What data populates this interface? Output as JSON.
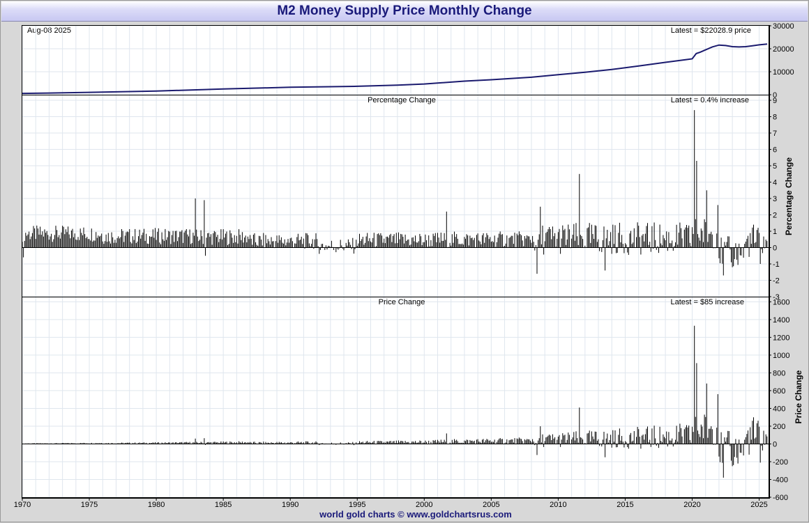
{
  "title": "M2 Money Supply Price Monthly Change",
  "footer": "world gold charts © www.goldchartsrus.com",
  "date_label": "Aug-08  2025",
  "colors": {
    "price_line": "#1a1a6e",
    "bars": "#000000",
    "grid": "#dfe6ee",
    "title_text": "#1a1a7a"
  },
  "chart_data": [
    {
      "type": "line",
      "panel": "price",
      "annotation": "Latest = $22028.9 price",
      "y_ticks": [
        "30000",
        "20000",
        "10000",
        "0"
      ],
      "ylim": [
        0,
        30000
      ],
      "x_ticks": [
        "1970",
        "1975",
        "1980",
        "1985",
        "1990",
        "1995",
        "2000",
        "2005",
        "2010",
        "2015",
        "2020",
        "2025"
      ],
      "xlim": [
        1970,
        2025.7
      ],
      "x": [
        1970.0,
        1972.0,
        1975.0,
        1978.0,
        1980.0,
        1983.0,
        1985.0,
        1988.0,
        1990.0,
        1993.0,
        1995.0,
        1998.0,
        2000.0,
        2003.0,
        2005.0,
        2008.0,
        2010.0,
        2012.0,
        2014.0,
        2016.0,
        2018.0,
        2019.5,
        2020.0,
        2020.3,
        2020.6,
        2021.0,
        2021.5,
        2022.0,
        2022.5,
        2023.0,
        2023.5,
        2024.0,
        2024.5,
        2025.0,
        2025.6
      ],
      "y": [
        590,
        720,
        1020,
        1360,
        1600,
        2130,
        2500,
        2950,
        3280,
        3500,
        3660,
        4150,
        4680,
        5900,
        6500,
        7600,
        8700,
        9800,
        11000,
        12500,
        14100,
        15200,
        15600,
        17900,
        18500,
        19500,
        20800,
        21600,
        21400,
        20900,
        20800,
        20900,
        21300,
        21700,
        22029
      ]
    },
    {
      "type": "bar",
      "panel": "percentage",
      "title": "Percentage Change",
      "ylabel": "Percentage Change",
      "annotation": "Latest = 0.4% increase",
      "y_ticks": [
        "9",
        "8",
        "7",
        "6",
        "5",
        "4",
        "3",
        "2",
        "1",
        "0",
        "-1",
        "-2",
        "-3"
      ],
      "ylim": [
        -3,
        9.3
      ],
      "notable_values": [
        {
          "x": 1970.1,
          "value": -0.6
        },
        {
          "x": 1982.9,
          "value": 3.0
        },
        {
          "x": 1983.6,
          "value": 2.9
        },
        {
          "x": 1983.7,
          "value": -0.5
        },
        {
          "x": 2001.7,
          "value": 2.2
        },
        {
          "x": 2008.4,
          "value": -1.6
        },
        {
          "x": 2008.7,
          "value": 2.5
        },
        {
          "x": 2011.6,
          "value": 4.5
        },
        {
          "x": 2013.5,
          "value": -1.4
        },
        {
          "x": 2020.2,
          "value": 8.4
        },
        {
          "x": 2020.3,
          "value": 5.3
        },
        {
          "x": 2021.1,
          "value": 3.5
        },
        {
          "x": 2021.9,
          "value": 2.6
        },
        {
          "x": 2022.3,
          "value": -1.7
        },
        {
          "x": 2023.0,
          "value": -1.2
        },
        {
          "x": 2024.6,
          "value": 1.4
        },
        {
          "x": 2025.1,
          "value": -1.0
        },
        {
          "x": 2025.6,
          "value": 0.4
        }
      ]
    },
    {
      "type": "bar",
      "panel": "price_change",
      "title": "Price Change",
      "ylabel": "Price Change",
      "annotation": "Latest = $85 increase",
      "y_ticks": [
        "1600",
        "1400",
        "1200",
        "1000",
        "800",
        "600",
        "400",
        "200",
        "0",
        "-200",
        "-400",
        "-600"
      ],
      "ylim": [
        -600,
        1650
      ],
      "notable_values": [
        {
          "x": 1982.9,
          "value": 60
        },
        {
          "x": 2011.6,
          "value": 410
        },
        {
          "x": 2020.2,
          "value": 1330
        },
        {
          "x": 2020.3,
          "value": 910
        },
        {
          "x": 2021.1,
          "value": 680
        },
        {
          "x": 2021.9,
          "value": 560
        },
        {
          "x": 2022.3,
          "value": -380
        },
        {
          "x": 2023.0,
          "value": -250
        },
        {
          "x": 2024.6,
          "value": 300
        },
        {
          "x": 2025.1,
          "value": -210
        },
        {
          "x": 2025.6,
          "value": 85
        }
      ]
    }
  ]
}
